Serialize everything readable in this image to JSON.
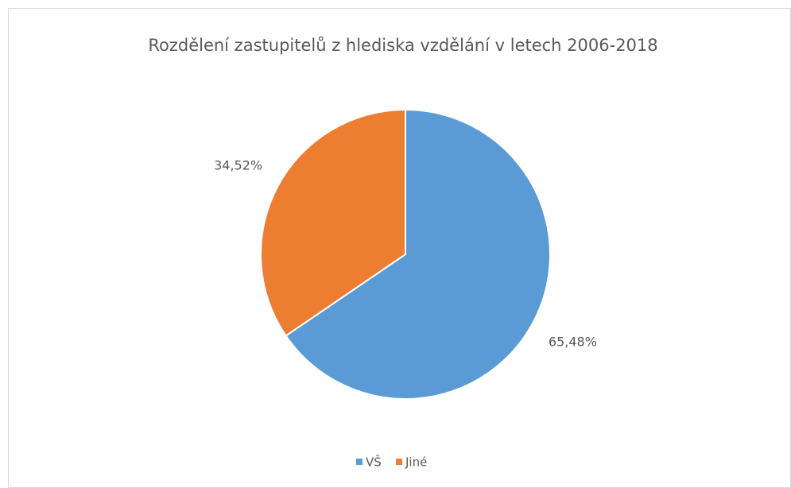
{
  "chart_data": {
    "type": "pie",
    "title": "Rozdělení zastupitelů z hlediska vzdělání v letech 2006-2018",
    "categories": [
      "VŠ",
      "Jiné"
    ],
    "values": [
      65.48,
      34.52
    ],
    "value_labels": [
      "65,48%",
      "34,52%"
    ],
    "colors": [
      "#5b9bd5",
      "#ed7d31"
    ],
    "legend": "bottom"
  }
}
